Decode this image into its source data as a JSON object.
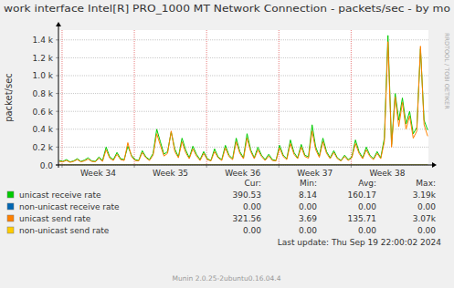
{
  "chart_data": {
    "type": "line",
    "title": "work interface Intel[R] PRO_1000 MT Network Connection - packets/sec - by mo",
    "y_label": "packet/sec",
    "x": [
      33.96,
      34.01,
      34.06,
      34.11,
      34.16,
      34.21,
      34.26,
      34.31,
      34.36,
      34.41,
      34.46,
      34.51,
      34.56,
      34.61,
      34.66,
      34.71,
      34.76,
      34.81,
      34.86,
      34.91,
      34.96,
      35.01,
      35.06,
      35.11,
      35.16,
      35.21,
      35.26,
      35.31,
      35.36,
      35.41,
      35.46,
      35.51,
      35.56,
      35.61,
      35.66,
      35.71,
      35.76,
      35.81,
      35.86,
      35.91,
      35.96,
      36.01,
      36.06,
      36.11,
      36.16,
      36.21,
      36.26,
      36.31,
      36.36,
      36.41,
      36.46,
      36.51,
      36.56,
      36.61,
      36.66,
      36.71,
      36.76,
      36.81,
      36.86,
      36.91,
      36.96,
      37.01,
      37.06,
      37.11,
      37.16,
      37.21,
      37.26,
      37.31,
      37.36,
      37.41,
      37.46,
      37.51,
      37.56,
      37.61,
      37.66,
      37.71,
      37.76,
      37.81,
      37.86,
      37.91,
      37.96,
      38.01,
      38.06,
      38.11,
      38.16,
      38.21,
      38.26,
      38.31,
      38.36,
      38.41,
      38.46,
      38.51,
      38.56,
      38.61,
      38.66,
      38.71,
      38.76,
      38.81,
      38.86,
      38.91,
      38.96,
      39.01,
      39.06
    ],
    "series": [
      {
        "name": "unicast receive rate",
        "color": "#00cc00",
        "cur": "390.53",
        "min": "8.14",
        "avg": "160.17",
        "max": "3.19k",
        "values": [
          50,
          40,
          60,
          35,
          45,
          70,
          40,
          55,
          80,
          45,
          40,
          90,
          50,
          200,
          90,
          60,
          140,
          70,
          60,
          210,
          110,
          60,
          50,
          160,
          90,
          60,
          130,
          400,
          260,
          120,
          150,
          370,
          180,
          90,
          300,
          170,
          80,
          210,
          120,
          60,
          150,
          70,
          50,
          180,
          90,
          60,
          220,
          110,
          70,
          300,
          150,
          80,
          350,
          170,
          80,
          200,
          110,
          60,
          120,
          60,
          50,
          220,
          110,
          70,
          280,
          140,
          80,
          230,
          110,
          90,
          450,
          200,
          100,
          300,
          150,
          80,
          160,
          80,
          50,
          110,
          60,
          90,
          280,
          150,
          80,
          200,
          110,
          70,
          150,
          80,
          300,
          1450,
          230,
          800,
          500,
          750,
          460,
          600,
          350,
          420,
          1300,
          500,
          390
        ]
      },
      {
        "name": "non-unicast receive rate",
        "color": "#0066b3",
        "cur": "0.00",
        "min": "0.00",
        "avg": "0.00",
        "max": "0.00",
        "values": [
          0,
          0,
          0,
          0,
          0,
          0,
          0,
          0,
          0,
          0,
          0,
          0,
          0,
          0,
          0,
          0,
          0,
          0,
          0,
          0,
          0,
          0,
          0,
          0,
          0,
          0,
          0,
          0,
          0,
          0,
          0,
          0,
          0,
          0,
          0,
          0,
          0,
          0,
          0,
          0,
          0,
          0,
          0,
          0,
          0,
          0,
          0,
          0,
          0,
          0,
          0,
          0,
          0,
          0,
          0,
          0,
          0,
          0,
          0,
          0,
          0,
          0,
          0,
          0,
          0,
          0,
          0,
          0,
          0,
          0,
          0,
          0,
          0,
          0,
          0,
          0,
          0,
          0,
          0,
          0,
          0,
          0,
          0,
          0,
          0,
          0,
          0,
          0,
          0,
          0,
          0,
          0,
          0,
          0,
          0,
          0,
          0,
          0,
          0,
          0,
          0,
          0,
          0
        ]
      },
      {
        "name": "unicast send rate",
        "color": "#ff8000",
        "cur": "321.56",
        "min": "3.69",
        "avg": "135.71",
        "max": "3.07k",
        "values": [
          40,
          35,
          50,
          30,
          40,
          60,
          35,
          45,
          65,
          40,
          35,
          75,
          40,
          170,
          75,
          50,
          120,
          60,
          50,
          250,
          95,
          50,
          45,
          140,
          80,
          50,
          110,
          350,
          220,
          100,
          130,
          380,
          150,
          80,
          260,
          140,
          70,
          180,
          100,
          50,
          130,
          60,
          45,
          150,
          80,
          50,
          190,
          95,
          60,
          260,
          130,
          70,
          300,
          150,
          70,
          170,
          95,
          50,
          100,
          50,
          45,
          190,
          95,
          60,
          240,
          120,
          70,
          200,
          95,
          75,
          380,
          170,
          85,
          260,
          130,
          70,
          140,
          70,
          45,
          95,
          50,
          80,
          240,
          130,
          70,
          170,
          95,
          60,
          130,
          70,
          260,
          1380,
          200,
          760,
          430,
          700,
          400,
          550,
          300,
          380,
          1330,
          450,
          322
        ]
      },
      {
        "name": "non-unicast send rate",
        "color": "#ffcc00",
        "cur": "0.00",
        "min": "0.00",
        "avg": "0.00",
        "max": "0.00",
        "values": [
          0,
          0,
          0,
          0,
          0,
          0,
          0,
          0,
          0,
          0,
          0,
          0,
          0,
          0,
          0,
          0,
          0,
          0,
          0,
          0,
          0,
          0,
          0,
          0,
          0,
          0,
          0,
          0,
          0,
          0,
          0,
          0,
          0,
          0,
          0,
          0,
          0,
          0,
          0,
          0,
          0,
          0,
          0,
          0,
          0,
          0,
          0,
          0,
          0,
          0,
          0,
          0,
          0,
          0,
          0,
          0,
          0,
          0,
          0,
          0,
          0,
          0,
          0,
          0,
          0,
          0,
          0,
          0,
          0,
          0,
          0,
          0,
          0,
          0,
          0,
          0,
          0,
          0,
          0,
          0,
          0,
          0,
          0,
          0,
          0,
          0,
          0,
          0,
          0,
          0,
          0,
          0,
          0,
          0,
          0,
          0,
          0,
          0,
          0,
          0,
          0,
          0,
          0
        ]
      }
    ],
    "xlim": [
      33.95,
      39.07
    ],
    "xticks": [
      {
        "value": 34,
        "label": "Week 34"
      },
      {
        "value": 35,
        "label": "Week 35"
      },
      {
        "value": 36,
        "label": "Week 36"
      },
      {
        "value": 37,
        "label": "Week 37"
      },
      {
        "value": 38,
        "label": "Week 38"
      }
    ],
    "ylim": [
      0,
      1510
    ],
    "yticks": [
      {
        "value": 0,
        "label": "0.0"
      },
      {
        "value": 200,
        "label": "0.2 k"
      },
      {
        "value": 400,
        "label": "0.4 k"
      },
      {
        "value": 600,
        "label": "0.6 k"
      },
      {
        "value": 800,
        "label": "0.8 k"
      },
      {
        "value": 1000,
        "label": "1.0 k"
      },
      {
        "value": 1200,
        "label": "1.2 k"
      },
      {
        "value": 1400,
        "label": "1.4 k"
      }
    ],
    "grid": true,
    "legend": "bottom",
    "legend_columns": [
      "Cur:",
      "Min:",
      "Avg:",
      "Max:"
    ],
    "last_update": "Last update: Thu Sep 19 22:00:02 2024",
    "footer": "Munin 2.0.25-2ubuntu0.16.04.4",
    "watermark": "RRDTOOL / TOBI OETIKER"
  }
}
